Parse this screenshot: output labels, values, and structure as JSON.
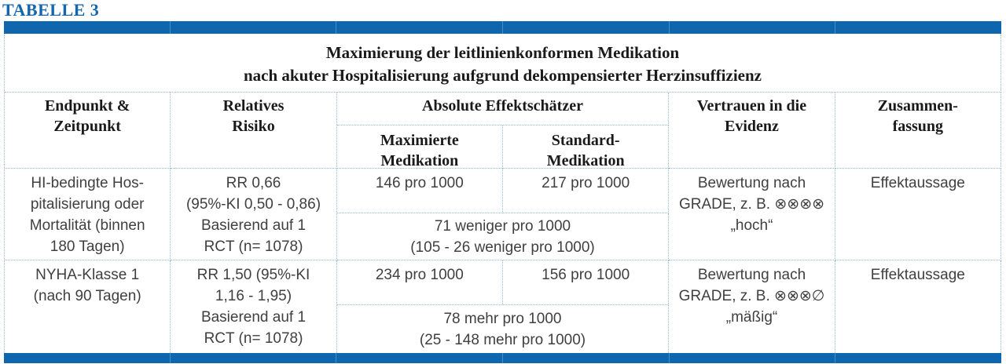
{
  "label": "TABELLE 3",
  "colors": {
    "bar_blue": "#0e67ae",
    "accent_blue": "#1366ad",
    "border_blue": "#93b7d6",
    "heading_text": "#1a1a1a",
    "body_text": "#404040"
  },
  "table": {
    "title": "Maximierung der leitlinienkonformen Medikation\nnach akuter Hospitalisierung aufgrund dekompensierter Herzinsuffizienz",
    "headers": {
      "endpoint": "Endpunkt &\nZeitpunkt",
      "relative_risk": "Relatives\nRisiko",
      "absolute_group": "Absolute Effektschätzer",
      "maximized": "Maximierte\nMedikation",
      "standard": "Standard-\nMedikation",
      "evidence": "Vertrauen in die\nEvidenz",
      "summary": "Zusammen-\nfassung"
    },
    "rows": [
      {
        "endpoint": "HI-bedingte Hos-\npitalisierung oder\nMortalität (binnen\n180 Tagen)",
        "relative_risk": "RR 0,66\n(95%-KI 0,50 - 0,86)\nBasierend auf 1\nRCT (n= 1078)",
        "maximized": "146 pro 1000",
        "standard": "217 pro 1000",
        "absolute_difference": "71 weniger pro 1000\n(105 - 26 weniger pro 1000)",
        "evidence": "Bewertung nach\nGRADE, z. B. ⊗⊗⊗⊗\n„hoch“",
        "summary": "Effektaussage"
      },
      {
        "endpoint": "NYHA-Klasse 1\n(nach 90 Tagen)",
        "relative_risk": "RR 1,50 (95%-KI\n1,16 - 1,95)\nBasierend auf 1\nRCT (n= 1078)",
        "maximized": "234 pro 1000",
        "standard": "156 pro 1000",
        "absolute_difference": "78 mehr pro 1000\n(25 - 148 mehr pro 1000)",
        "evidence": "Bewertung nach\nGRADE, z. B. ⊗⊗⊗∅\n„mäßig“",
        "summary": "Effektaussage"
      }
    ]
  }
}
